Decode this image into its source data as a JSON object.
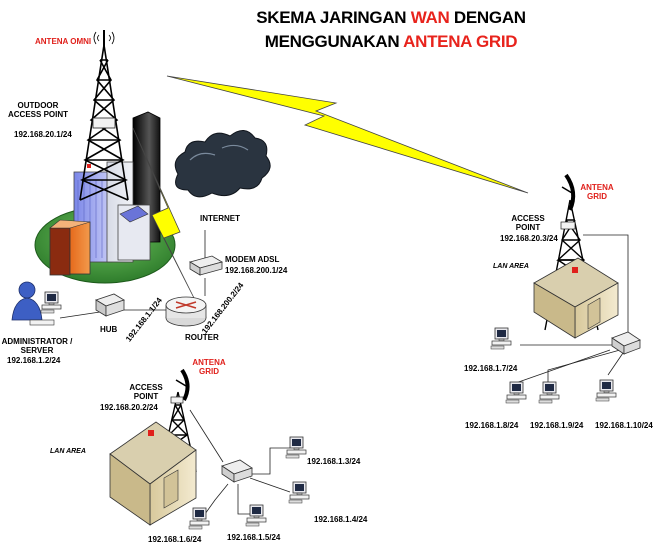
{
  "title": {
    "line1_a": "SKEMA JARINGAN ",
    "line1_b": "WAN",
    "line1_c": " DENGAN",
    "line2_a": "MENGGUNAKAN ",
    "line2_b": "ANTENA GRID"
  },
  "labels": {
    "antena_omni": "ANTENA OMNI",
    "outdoor_ap_1": "OUTDOOR",
    "outdoor_ap_2": "ACCESS POINT",
    "outdoor_ip": "192.168.20.1/24",
    "internet": "INTERNET",
    "modem": "MODEM ADSL",
    "modem_ip": "192.168.200.1/24",
    "hub": "HUB",
    "router": "ROUTER",
    "router_ip1": "192.168.1.1/24",
    "router_ip2": "192.168.200.2/24",
    "admin_1": "ADMINISTRATOR /",
    "admin_2": "SERVER",
    "admin_ip": "192.168.1.2/24",
    "grid_1": "ANTENA",
    "grid_2": "GRID",
    "ap_1": "ACCESS",
    "ap_2": "POINT",
    "ap_left_ip": "192.168.20.2/24",
    "ap_right_ip": "192.168.20.3/24",
    "lan_area": "LAN AREA",
    "pc_13": "192.168.1.3/24",
    "pc_14": "192.168.1.4/24",
    "pc_15": "192.168.1.5/24",
    "pc_16": "192.168.1.6/24",
    "pc_17": "192.168.1.7/24",
    "pc_18": "192.168.1.8/24",
    "pc_19": "192.168.1.9/24",
    "pc_110": "192.168.1.10/24"
  },
  "colors": {
    "lightning": "#ffff00",
    "tower": "#000000",
    "house_wall": "#ece0b8",
    "grass": "#3f9a3a",
    "cloud": "#2a3440"
  }
}
